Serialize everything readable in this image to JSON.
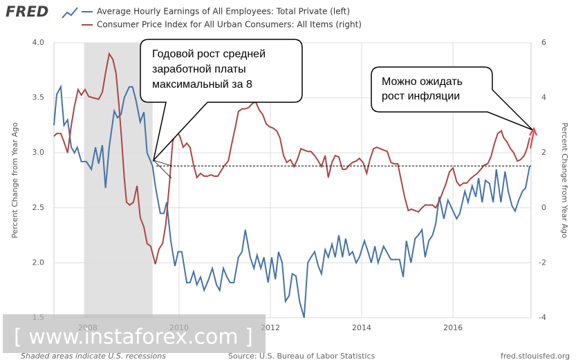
{
  "logo": "FRED",
  "chart_data": {
    "type": "line",
    "y_label": "Percent Change from Year Ago",
    "y2_label": "Percent Change from Year Ago",
    "xlim": [
      2007.26,
      2017.71
    ],
    "xticks": [
      2008,
      2010,
      2012,
      2014,
      2016
    ],
    "ylim": [
      1.5,
      4.0
    ],
    "yticks": [
      1.5,
      {
        "value": 2.0,
        "label": "2.0"
      },
      2.5,
      {
        "value": 3.0,
        "label": "3.0"
      },
      3.5,
      {
        "value": 4.0,
        "label": "4.0"
      }
    ],
    "y2lim": [
      -4,
      6
    ],
    "y2ticks": [
      -4,
      -2,
      0,
      2,
      4,
      6
    ],
    "grid": true,
    "recessions": [
      [
        2007.92,
        2009.42
      ]
    ],
    "reference_line": 2.88,
    "series": [
      {
        "name": "Average Hourly Earnings of All Employees: Total Private (left)",
        "color": "#4572a7",
        "x": [
          2007.26,
          2007.32,
          2007.41,
          2007.48,
          2007.56,
          2007.64,
          2007.71,
          2007.77,
          2007.86,
          2007.97,
          2008.08,
          2008.17,
          2008.24,
          2008.32,
          2008.39,
          2008.47,
          2008.58,
          2008.65,
          2008.73,
          2008.8,
          2008.91,
          2008.98,
          2009.06,
          2009.15,
          2009.23,
          2009.3,
          2009.38,
          2009.42,
          2009.48,
          2009.59,
          2009.67,
          2009.73,
          2009.82,
          2009.91,
          2009.98,
          2010.06,
          2010.17,
          2010.24,
          2010.32,
          2010.39,
          2010.47,
          2010.55,
          2010.65,
          2010.73,
          2010.82,
          2010.89,
          2010.97,
          2011.05,
          2011.12,
          2011.2,
          2011.3,
          2011.38,
          2011.45,
          2011.56,
          2011.64,
          2011.71,
          2011.79,
          2011.86,
          2011.95,
          2012.03,
          2012.11,
          2012.18,
          2012.26,
          2012.33,
          2012.41,
          2012.48,
          2012.56,
          2012.64,
          2012.74,
          2012.82,
          2012.89,
          2012.97,
          2013.05,
          2013.12,
          2013.2,
          2013.27,
          2013.35,
          2013.42,
          2013.5,
          2013.58,
          2013.65,
          2013.73,
          2013.8,
          2013.88,
          2013.95,
          2014.06,
          2014.14,
          2014.21,
          2014.29,
          2014.36,
          2014.48,
          2014.64,
          2014.83,
          2014.91,
          2014.98,
          2015.08,
          2015.17,
          2015.24,
          2015.32,
          2015.39,
          2015.47,
          2015.55,
          2015.62,
          2015.7,
          2015.8,
          2015.89,
          2015.97,
          2016.08,
          2016.15,
          2016.26,
          2016.33,
          2016.42,
          2016.5,
          2016.56,
          2016.64,
          2016.71,
          2016.8,
          2016.88,
          2016.95,
          2017.05,
          2017.14,
          2017.21,
          2017.29,
          2017.36,
          2017.44,
          2017.52,
          2017.59,
          2017.68
        ],
        "values": [
          3.25,
          3.53,
          3.6,
          3.25,
          3.3,
          3.05,
          3.0,
          3.05,
          2.92,
          2.92,
          2.85,
          3.05,
          2.9,
          3.07,
          2.68,
          3.05,
          3.38,
          3.32,
          3.35,
          3.5,
          3.6,
          3.6,
          3.47,
          3.28,
          3.37,
          3.0,
          2.92,
          2.88,
          2.7,
          2.45,
          2.45,
          2.55,
          2.2,
          1.97,
          2.1,
          2.1,
          1.82,
          1.82,
          1.92,
          1.8,
          1.87,
          1.75,
          1.85,
          1.95,
          1.8,
          1.75,
          1.95,
          1.87,
          1.82,
          1.82,
          2.05,
          2.1,
          2.3,
          2.05,
          1.95,
          2.07,
          1.95,
          2.05,
          1.82,
          2.05,
          1.85,
          2.1,
          2.0,
          1.65,
          1.7,
          1.9,
          1.88,
          1.65,
          1.5,
          2.0,
          2.05,
          2.1,
          1.97,
          1.9,
          2.12,
          2.05,
          2.17,
          2.05,
          2.25,
          2.05,
          2.22,
          2.07,
          2.1,
          2.0,
          2.05,
          2.2,
          2.1,
          2.0,
          2.15,
          2.0,
          2.15,
          2.03,
          2.03,
          1.87,
          2.2,
          2.0,
          2.22,
          2.25,
          2.3,
          2.05,
          2.2,
          2.25,
          2.35,
          2.6,
          2.4,
          2.57,
          2.5,
          2.4,
          2.45,
          2.65,
          2.55,
          2.7,
          2.6,
          2.77,
          2.55,
          2.75,
          2.72,
          2.55,
          2.85,
          2.55,
          2.83,
          2.65,
          2.52,
          2.47,
          2.57,
          2.65,
          2.68,
          2.88
        ]
      },
      {
        "name": "Consumer Price Index for All Urban Consumers: All Items (right)",
        "color": "#aa4643",
        "axis": "y2",
        "x": [
          2007.26,
          2007.32,
          2007.41,
          2007.48,
          2007.56,
          2007.64,
          2007.71,
          2007.79,
          2007.86,
          2007.94,
          2008.02,
          2008.12,
          2008.24,
          2008.32,
          2008.39,
          2008.47,
          2008.55,
          2008.62,
          2008.68,
          2008.74,
          2008.8,
          2008.85,
          2008.92,
          2009.0,
          2009.08,
          2009.15,
          2009.23,
          2009.3,
          2009.38,
          2009.48,
          2009.56,
          2009.64,
          2009.71,
          2009.79,
          2009.86,
          2009.94,
          2010.02,
          2010.09,
          2010.17,
          2010.24,
          2010.32,
          2010.39,
          2010.47,
          2010.55,
          2010.62,
          2010.7,
          2010.77,
          2010.85,
          2010.92,
          2011.0,
          2011.08,
          2011.15,
          2011.23,
          2011.3,
          2011.38,
          2011.45,
          2011.53,
          2011.61,
          2011.68,
          2011.76,
          2011.83,
          2011.91,
          2011.98,
          2012.06,
          2012.14,
          2012.21,
          2012.29,
          2012.36,
          2012.44,
          2012.52,
          2012.59,
          2012.67,
          2012.74,
          2012.82,
          2012.89,
          2012.97,
          2013.05,
          2013.12,
          2013.2,
          2013.27,
          2013.35,
          2013.42,
          2013.5,
          2013.58,
          2013.65,
          2013.73,
          2013.8,
          2013.88,
          2013.95,
          2014.03,
          2014.11,
          2014.18,
          2014.26,
          2014.33,
          2014.41,
          2014.48,
          2014.56,
          2014.64,
          2014.71,
          2014.79,
          2014.86,
          2014.94,
          2015.02,
          2015.09,
          2015.17,
          2015.24,
          2015.32,
          2015.39,
          2015.47,
          2015.55,
          2015.62,
          2015.7,
          2015.77,
          2015.85,
          2015.92,
          2016.0,
          2016.08,
          2016.15,
          2016.23,
          2016.3,
          2016.38,
          2016.45,
          2016.53,
          2016.61,
          2016.68,
          2016.76,
          2016.83,
          2016.91,
          2016.98,
          2017.06,
          2017.11,
          2017.18,
          2017.26,
          2017.33,
          2017.41,
          2017.48,
          2017.56,
          2017.62,
          2017.68
        ],
        "values": [
          2.6,
          2.7,
          2.7,
          2.4,
          2.0,
          3.0,
          3.7,
          4.3,
          4.1,
          4.3,
          4.05,
          4.0,
          3.95,
          4.2,
          4.9,
          5.6,
          5.4,
          4.9,
          3.8,
          2.55,
          1.1,
          0.2,
          0.1,
          0.2,
          0.8,
          -0.35,
          -0.7,
          -1.3,
          -1.4,
          -2.05,
          -1.5,
          -1.3,
          -0.6,
          0.9,
          2.4,
          2.8,
          2.6,
          2.2,
          2.35,
          2.2,
          1.55,
          1.1,
          1.25,
          1.15,
          1.15,
          1.2,
          1.15,
          1.15,
          1.35,
          1.55,
          1.7,
          2.3,
          2.9,
          3.5,
          3.6,
          3.6,
          3.65,
          3.8,
          3.85,
          3.55,
          3.4,
          3.05,
          2.95,
          2.9,
          2.8,
          2.55,
          1.9,
          1.65,
          1.75,
          1.5,
          1.75,
          2.15,
          2.1,
          2.05,
          2.05,
          1.9,
          1.7,
          1.5,
          1.9,
          1.1,
          1.65,
          1.9,
          1.85,
          1.4,
          1.4,
          1.55,
          1.65,
          1.7,
          1.8,
          1.65,
          1.25,
          1.75,
          2.15,
          2.2,
          2.15,
          2.1,
          2.05,
          1.65,
          1.6,
          1.6,
          1.05,
          0.4,
          -0.1,
          -0.05,
          -0.1,
          -0.15,
          0,
          0.1,
          0.1,
          0.1,
          0,
          0.25,
          0.55,
          0.9,
          1.3,
          1.45,
          0.95,
          0.8,
          0.9,
          0.9,
          1.05,
          1.15,
          1.25,
          1.4,
          1.55,
          1.6,
          1.85,
          2.35,
          2.7,
          2.8,
          2.55,
          2.4,
          2.15,
          2.0,
          1.7,
          1.75,
          1.9,
          2.15,
          2.55
        ]
      }
    ],
    "annotations": [
      "Годовой рост средней",
      "заработной платы",
      "максимальный за 8",
      "Можно ожидать",
      "рост инфляции"
    ],
    "footer": {
      "note": "Shaded areas indicate U.S. recessions",
      "source": "Source: U.S. Bureau of Labor Statistics",
      "site": "fred.stlouisfed.org"
    },
    "watermark": "[ www.instaforex.com ]"
  }
}
